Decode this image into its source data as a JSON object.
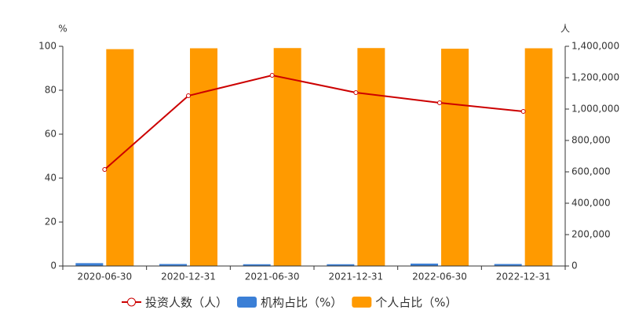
{
  "chart_data": {
    "type": "bar_line",
    "categories": [
      "2020-06-30",
      "2020-12-31",
      "2021-06-30",
      "2021-12-31",
      "2022-06-30",
      "2022-12-31"
    ],
    "series": [
      {
        "name": "投资人数（人）",
        "type": "line",
        "axis": "y2",
        "color": "#cc0000",
        "values": [
          615000,
          1085000,
          1215000,
          1105000,
          1040000,
          985000
        ]
      },
      {
        "name": "机构占比（%）",
        "type": "bar",
        "color": "#3b7fd6",
        "values": [
          1.3,
          0.9,
          0.8,
          0.8,
          1.1,
          0.9
        ]
      },
      {
        "name": "个人占比（%）",
        "type": "bar",
        "color": "#ff9a00",
        "values": [
          98.7,
          99.1,
          99.2,
          99.2,
          98.9,
          99.1
        ]
      }
    ],
    "y_unit": "%",
    "y2_unit": "人",
    "ylim": [
      0,
      100
    ],
    "yticks": [
      0,
      20,
      40,
      60,
      80,
      100
    ],
    "y2lim": [
      0,
      1400000
    ],
    "y2ticks": [
      0,
      {
        "value": 200000,
        "label": "200,000"
      },
      {
        "value": 400000,
        "label": "400,000"
      },
      {
        "value": 600000,
        "label": "600,000"
      },
      {
        "value": 800000,
        "label": "800,000"
      },
      {
        "value": 1000000,
        "label": "1,000,000"
      },
      {
        "value": 1200000,
        "label": "1,200,000"
      },
      {
        "value": 1400000,
        "label": "1,400,000"
      }
    ]
  }
}
